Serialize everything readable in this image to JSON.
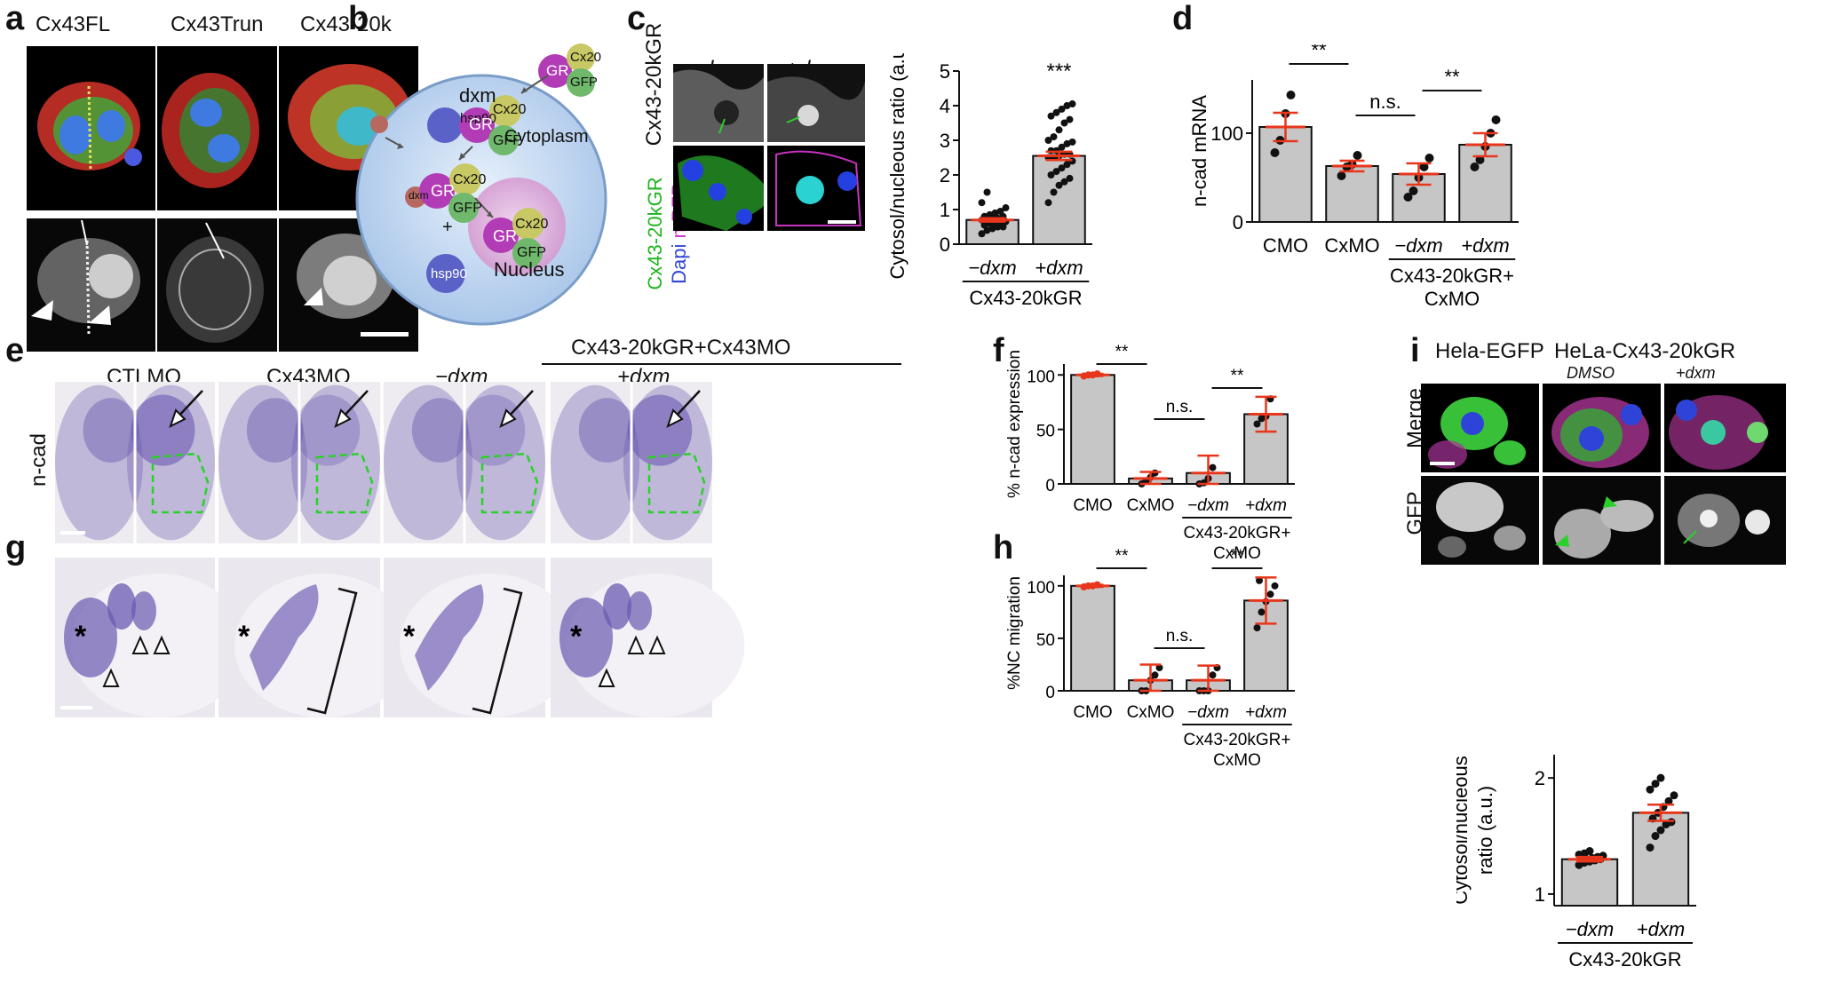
{
  "panels": {
    "a": "a",
    "b": "b",
    "c": "c",
    "d": "d",
    "e": "e",
    "f": "f",
    "g": "g",
    "h": "h",
    "i": "i"
  },
  "panel_a": {
    "cols": [
      "Cx43FL",
      "Cx43Trun",
      "Cx43-20k"
    ]
  },
  "panel_b": {
    "dxm": "dxm",
    "cytoplasm": "Cytoplasm",
    "nucleus": "Nucleus",
    "hsp90": "hsp90",
    "gr": "GR",
    "cx20": "Cx20",
    "gfp": "GFP",
    "plus": "+"
  },
  "panel_c": {
    "cols": [
      "−dxm",
      "+dxm"
    ],
    "row1": "Cx43-20kGR",
    "row2_green": "Cx43-20kGR",
    "row2_blue": "Dapi",
    "row2_magenta": "mRFP"
  },
  "panel_e": {
    "group": "Cx43-20kGR+Cx43MO",
    "cols": [
      "CTLMO",
      "Cx43MO",
      "−dxm",
      "+dxm"
    ],
    "row": "n-cad"
  },
  "panel_i": {
    "cols": [
      "Hela-EGFP",
      "HeLa-Cx43-20kGR"
    ],
    "subcols": [
      "DMSO",
      "+dxm"
    ],
    "rows": [
      "Merge",
      "GFP"
    ]
  },
  "chart_data": [
    {
      "id": "c",
      "type": "bar",
      "categories": [
        "−dxm",
        "+dxm"
      ],
      "values": [
        0.7,
        2.55
      ],
      "errors": [
        0.05,
        0.12
      ],
      "points": [
        [
          0.3,
          0.4,
          0.45,
          0.5,
          0.5,
          0.55,
          0.6,
          0.6,
          0.65,
          0.65,
          0.7,
          0.7,
          0.75,
          0.75,
          0.8,
          0.8,
          0.85,
          0.9,
          0.95,
          1.05,
          1.2,
          1.5
        ],
        [
          1.2,
          1.5,
          1.7,
          1.8,
          1.9,
          2.0,
          2.1,
          2.2,
          2.3,
          2.4,
          2.5,
          2.5,
          2.55,
          2.6,
          2.6,
          2.7,
          2.7,
          2.8,
          2.9,
          2.95,
          3.0,
          3.1,
          3.3,
          3.5,
          3.6,
          3.7,
          3.8,
          3.9,
          4.0,
          4.05
        ]
      ],
      "ylabel": "Cytosol/nucleous ratio (a.u.)",
      "ylim": [
        0,
        5
      ],
      "yticks": [
        "0",
        "1",
        "2",
        "3",
        "4",
        "5"
      ],
      "group_label": "Cx43-20kGR",
      "sig": "***"
    },
    {
      "id": "d",
      "type": "bar",
      "categories": [
        "CMO",
        "CxMO",
        "−dxm",
        "+dxm"
      ],
      "values": [
        107,
        63,
        54,
        87
      ],
      "errors": [
        16,
        6,
        12,
        13
      ],
      "points": [
        [
          78,
          92,
          122,
          143
        ],
        [
          52,
          62,
          65,
          75
        ],
        [
          28,
          35,
          50,
          62,
          72
        ],
        [
          62,
          70,
          85,
          100,
          115
        ]
      ],
      "ylabel": "n-cad mRNA",
      "ylim": [
        0,
        160
      ],
      "yticks": [
        "0",
        "100"
      ],
      "group_label": "Cx43-20kGR+ CxMO",
      "group_lines": [
        "Cx43-20kGR+",
        "CxMO"
      ],
      "sig": [
        "**",
        "n.s.",
        "**"
      ]
    },
    {
      "id": "f",
      "type": "bar",
      "categories": [
        "CMO",
        "CxMO",
        "−dxm",
        "+dxm"
      ],
      "values": [
        100,
        5,
        10,
        64
      ],
      "errors": [
        1,
        6,
        16,
        16
      ],
      "points": [
        [
          99,
          100,
          100,
          101
        ],
        [
          0,
          3,
          6,
          10
        ],
        [
          0,
          1,
          5,
          15
        ],
        [
          55,
          60,
          62,
          78
        ]
      ],
      "ylabel": "% n-cad expression",
      "ylim": [
        0,
        110
      ],
      "yticks": [
        "0",
        "50",
        "100"
      ],
      "group_label": "Cx43-20kGR+ CxMO",
      "group_lines": [
        "Cx43-20kGR+",
        "CxMO"
      ],
      "sig": [
        "**",
        "n.s.",
        "**"
      ]
    },
    {
      "id": "h",
      "type": "bar",
      "categories": [
        "CMO",
        "CxMO",
        "−dxm",
        "+dxm"
      ],
      "values": [
        100,
        10,
        10,
        86
      ],
      "errors": [
        1,
        15,
        14,
        22
      ],
      "points": [
        [
          99,
          100,
          100,
          101
        ],
        [
          0,
          0,
          10,
          15,
          22
        ],
        [
          0,
          0,
          0,
          15,
          22
        ],
        [
          60,
          75,
          85,
          92,
          100,
          105
        ]
      ],
      "ylabel": "%NC migration",
      "ylim": [
        0,
        110
      ],
      "yticks": [
        "0",
        "50",
        "100"
      ],
      "group_label": "Cx43-20kGR+ CxMO",
      "group_lines": [
        "Cx43-20kGR+",
        "CxMO"
      ],
      "sig": [
        "**",
        "n.s.",
        "**"
      ]
    },
    {
      "id": "i",
      "type": "bar",
      "categories": [
        "−dxm",
        "+dxm"
      ],
      "values": [
        1.3,
        1.7
      ],
      "errors": [
        0.02,
        0.07
      ],
      "points": [
        [
          1.25,
          1.27,
          1.28,
          1.29,
          1.3,
          1.3,
          1.3,
          1.31,
          1.32,
          1.33,
          1.34,
          1.35,
          1.37
        ],
        [
          1.4,
          1.5,
          1.55,
          1.6,
          1.62,
          1.65,
          1.7,
          1.75,
          1.8,
          1.85,
          1.9,
          1.95,
          2.0
        ]
      ],
      "ylabel": "Cytosol/nucleous ratio (a.u.)",
      "ylabel_lines": [
        "Cytosol/nucleous",
        "ratio (a.u.)"
      ],
      "ylim": [
        0.9,
        2.2
      ],
      "yticks": [
        "1",
        "2"
      ],
      "group_label": "Cx43-20kGR",
      "sig": "***"
    }
  ],
  "colors": {
    "mean": "#e8361c",
    "bar": "#c6c6c6",
    "stain": "#6a58b0",
    "dash": "#2bd12b"
  }
}
